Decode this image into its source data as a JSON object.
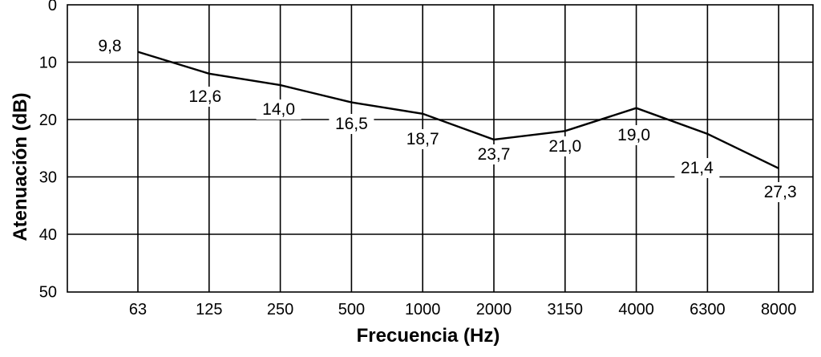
{
  "chart_data": {
    "type": "line",
    "title": "",
    "xlabel": "Frecuencia (Hz)",
    "ylabel": "Atenuación (dB)",
    "categories": [
      "63",
      "125",
      "250",
      "500",
      "1000",
      "2000",
      "3150",
      "4000",
      "6300",
      "8000"
    ],
    "series": [
      {
        "values": [
          9.8,
          12.6,
          14.0,
          16.5,
          18.7,
          23.7,
          21.0,
          19.0,
          21.4,
          27.3
        ],
        "labels": [
          "9,8",
          "12,6",
          "14,0",
          "16,5",
          "18,7",
          "23,7",
          "21,0",
          "19,0",
          "21,4",
          "27,3"
        ],
        "color": "#000000"
      }
    ],
    "plotted_values": [
      8.2,
      12.0,
      14.0,
      17.0,
      19.0,
      23.5,
      22.0,
      18.0,
      22.5,
      28.5
    ],
    "y_ticks": [
      "0",
      "10",
      "20",
      "30",
      "40",
      "50"
    ],
    "ylim": [
      0,
      50
    ],
    "y_inverted": true,
    "grid": true,
    "legend": "none"
  }
}
